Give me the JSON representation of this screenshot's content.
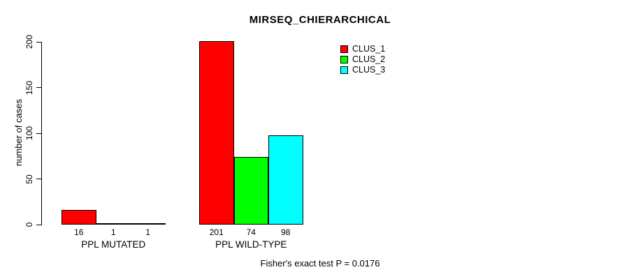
{
  "chart_data": {
    "type": "bar",
    "title": "MIRSEQ_CHIERARCHICAL",
    "ylabel": "number of cases",
    "xlabel": "",
    "categories": [
      "PPL MUTATED",
      "PPL WILD-TYPE"
    ],
    "series": [
      {
        "name": "CLUS_1",
        "color": "#FF0000",
        "values": [
          16,
          201
        ]
      },
      {
        "name": "CLUS_2",
        "color": "#00FF00",
        "values": [
          1,
          74
        ]
      },
      {
        "name": "CLUS_3",
        "color": "#00FFFF",
        "values": [
          1,
          98
        ]
      }
    ],
    "value_labels_shown": true,
    "yticks": [
      0,
      50,
      100,
      150,
      200
    ],
    "ylim": [
      0,
      200
    ],
    "grid": false,
    "legend_position": "top-right",
    "annotation": "Fisher's exact test P = 0.0176"
  }
}
